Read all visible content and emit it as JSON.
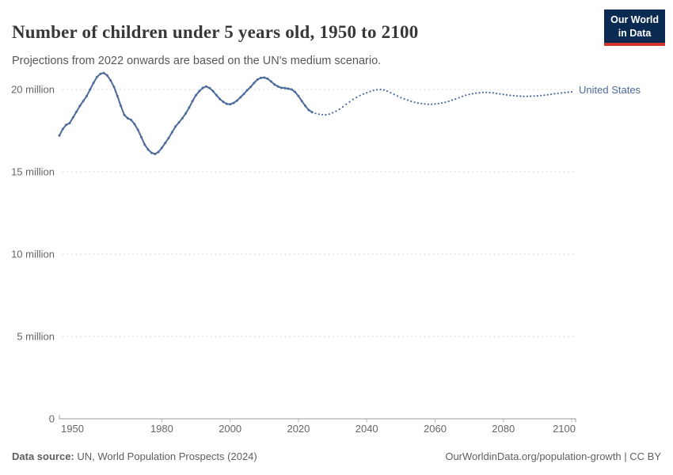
{
  "header": {
    "title": "Number of children under 5 years old, 1950 to 2100",
    "subtitle": "Projections from 2022 onwards are based on the UN's medium scenario.",
    "logo": {
      "line1": "Our World",
      "line2": "in Data",
      "bg_color": "#0b2a52",
      "accent_color": "#cf352a"
    }
  },
  "chart_data": {
    "type": "line",
    "title": "Number of children under 5 years old, 1950 to 2100",
    "subtitle": "Projections from 2022 onwards are based on the UN's medium scenario.",
    "xlabel": "",
    "ylabel": "",
    "unit": "million",
    "xlim": [
      1950,
      2100
    ],
    "ylim": [
      0,
      21.5
    ],
    "grid": "horizontal-dashed",
    "legend_position": "end-of-line-label",
    "xticks": [
      1950,
      1980,
      2000,
      2020,
      2040,
      2060,
      2080,
      2100
    ],
    "yticks": [
      {
        "value": 0,
        "label": "0"
      },
      {
        "value": 5,
        "label": "5 million"
      },
      {
        "value": 10,
        "label": "10 million"
      },
      {
        "value": 15,
        "label": "15 million"
      },
      {
        "value": 20,
        "label": "20 million"
      }
    ],
    "series": [
      {
        "name": "United States",
        "color": "#4c6a9c",
        "year_start": 1950,
        "year_step": 1,
        "solid_until": 2024,
        "projection_note": "dotted from 2024 onwards (UN medium scenario)",
        "values": [
          17.2,
          17.6,
          17.85,
          17.95,
          18.3,
          18.65,
          19.0,
          19.3,
          19.6,
          20.0,
          20.4,
          20.75,
          20.95,
          21.0,
          20.85,
          20.55,
          20.15,
          19.6,
          19.0,
          18.45,
          18.25,
          18.15,
          17.9,
          17.55,
          17.1,
          16.65,
          16.35,
          16.15,
          16.08,
          16.2,
          16.45,
          16.75,
          17.05,
          17.4,
          17.75,
          18.0,
          18.25,
          18.55,
          18.9,
          19.3,
          19.65,
          19.9,
          20.1,
          20.18,
          20.08,
          19.9,
          19.65,
          19.42,
          19.25,
          19.12,
          19.1,
          19.18,
          19.32,
          19.52,
          19.72,
          19.95,
          20.15,
          20.4,
          20.6,
          20.7,
          20.72,
          20.65,
          20.48,
          20.3,
          20.18,
          20.1,
          20.08,
          20.05,
          20.0,
          19.85,
          19.6,
          19.3,
          19.0,
          18.75,
          18.62,
          18.55,
          18.5,
          18.47,
          18.46,
          18.5,
          18.58,
          18.68,
          18.8,
          18.94,
          19.1,
          19.25,
          19.4,
          19.52,
          19.63,
          19.72,
          19.8,
          19.88,
          19.94,
          19.98,
          20.0,
          19.97,
          19.9,
          19.8,
          19.7,
          19.6,
          19.5,
          19.42,
          19.35,
          19.28,
          19.22,
          19.18,
          19.15,
          19.12,
          19.1,
          19.1,
          19.12,
          19.14,
          19.18,
          19.22,
          19.28,
          19.35,
          19.42,
          19.5,
          19.58,
          19.65,
          19.7,
          19.74,
          19.78,
          19.8,
          19.82,
          19.82,
          19.81,
          19.79,
          19.76,
          19.73,
          19.7,
          19.67,
          19.64,
          19.62,
          19.6,
          19.59,
          19.58,
          19.58,
          19.59,
          19.6,
          19.61,
          19.63,
          19.65,
          19.68,
          19.71,
          19.74,
          19.77,
          19.79,
          19.81,
          19.83,
          19.85
        ]
      }
    ]
  },
  "footer": {
    "source_label": "Data source:",
    "source_text": " UN, World Population Prospects (2024)",
    "credit": "OurWorldinData.org/population-growth | CC BY"
  }
}
